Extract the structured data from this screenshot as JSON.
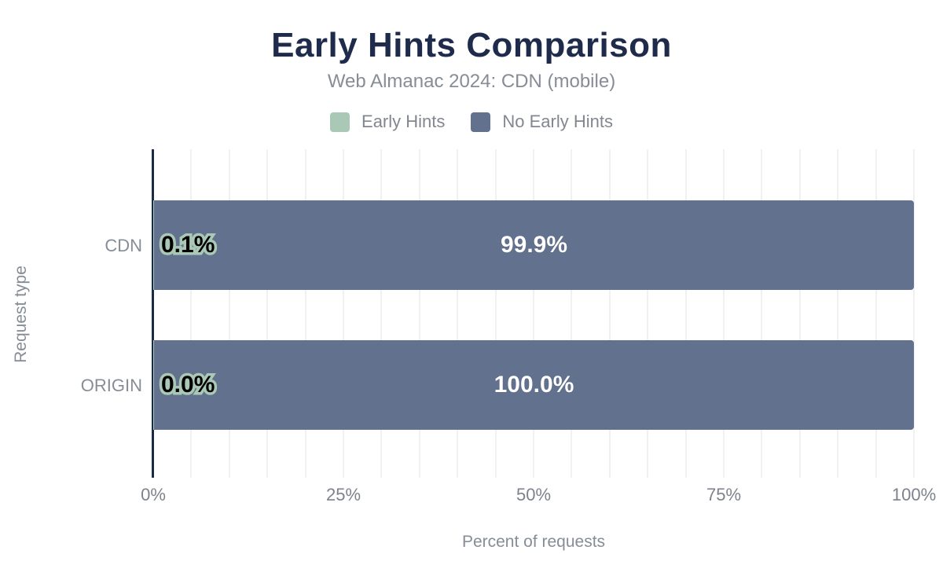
{
  "chart": {
    "title": "Early Hints Comparison",
    "subtitle": "Web Almanac 2024: CDN (mobile)",
    "legend": [
      {
        "label": "Early Hints",
        "color": "#a9c9b6",
        "swatch_icon": "green-square-swatch-icon"
      },
      {
        "label": "No Early Hints",
        "color": "#62718e",
        "swatch_icon": "slate-square-swatch-icon"
      }
    ]
  },
  "chart_data": {
    "type": "bar",
    "orientation": "horizontal",
    "stacked": true,
    "title": "Early Hints Comparison",
    "subtitle": "Web Almanac 2024: CDN (mobile)",
    "categories": [
      "CDN",
      "ORIGIN"
    ],
    "series": [
      {
        "name": "Early Hints",
        "color": "#a9c9b6",
        "values": [
          0.1,
          0.0
        ]
      },
      {
        "name": "No Early Hints",
        "color": "#62718e",
        "values": [
          99.9,
          100.0
        ]
      }
    ],
    "data_labels": [
      {
        "category": "CDN",
        "early_hints": "0.1%",
        "no_early_hints": "99.9%"
      },
      {
        "category": "ORIGIN",
        "early_hints": "0.0%",
        "no_early_hints": "100.0%"
      }
    ],
    "xlabel": "Percent of requests",
    "ylabel": "Request type",
    "xlim": [
      0,
      100
    ],
    "xticks": [
      {
        "label": "0%",
        "value": 0
      },
      {
        "label": "25%",
        "value": 25
      },
      {
        "label": "50%",
        "value": 50
      },
      {
        "label": "75%",
        "value": 75
      },
      {
        "label": "100%",
        "value": 100
      }
    ],
    "grid": {
      "vertical_minor_step_percent": 5,
      "color": "#f1f1f1"
    },
    "legend_position": "top"
  },
  "colors": {
    "title_text": "#1e2b4a",
    "axis_line": "#1a2b49",
    "muted_text": "#868d96",
    "tick_text": "#7d828c",
    "bar_no_early_hints": "#62718e",
    "bar_early_hints": "#a9c9b6",
    "gridline": "#f1f1f1",
    "background": "#ffffff"
  }
}
